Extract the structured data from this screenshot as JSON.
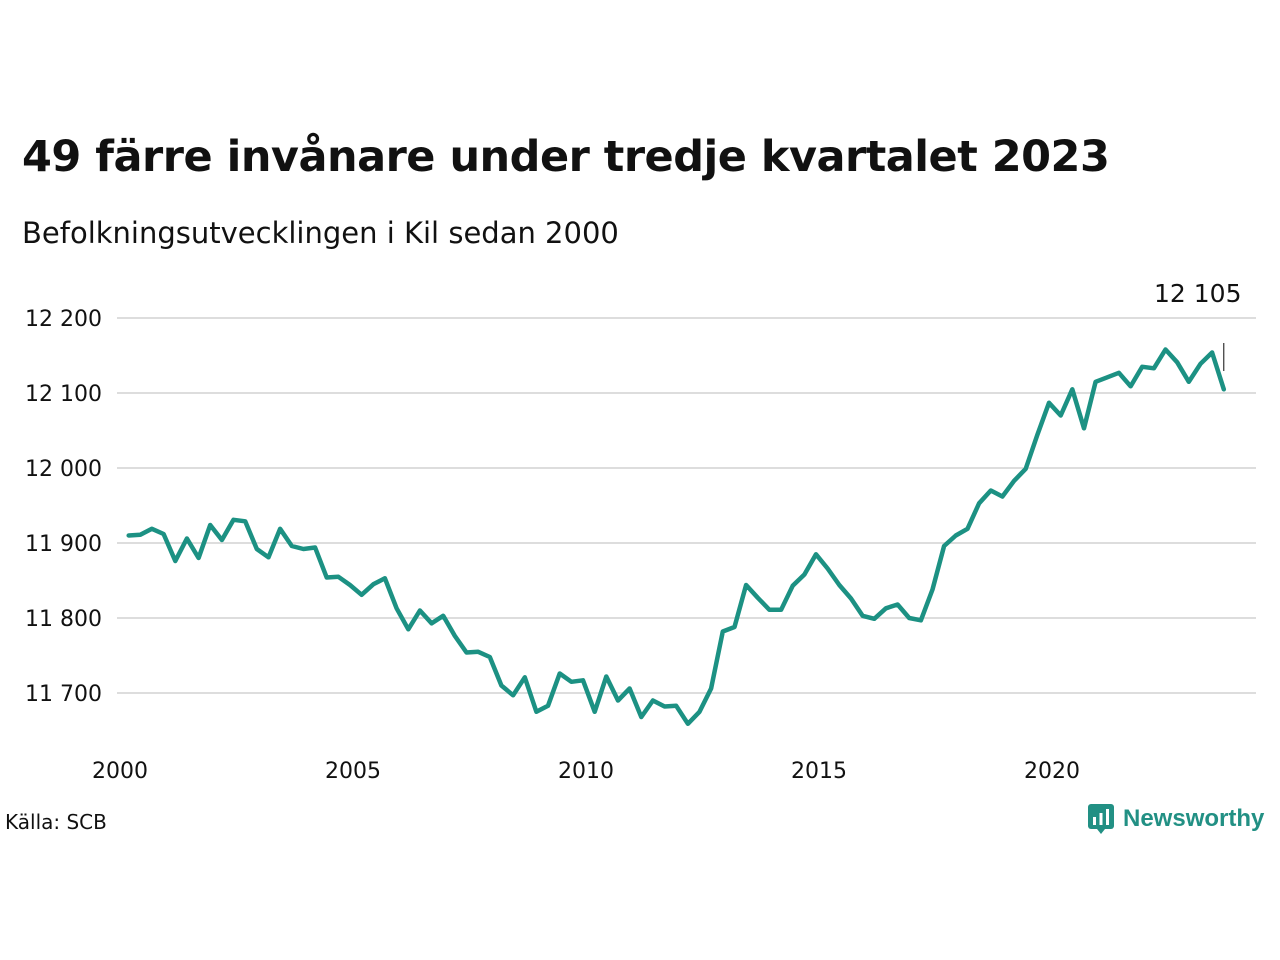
{
  "header": {
    "title": "49 färre invånare under tredje kvartalet 2023",
    "subtitle": "Befolkningsutvecklingen i Kil sedan 2000"
  },
  "footer": {
    "source": "Källa: SCB",
    "brand": "Newsworthy",
    "brand_icon": "newsworthy-logo-icon"
  },
  "colors": {
    "line": "#1c9183",
    "grid": "#dddddd",
    "brand": "#229084"
  },
  "chart_data": {
    "type": "line",
    "x_start": 2000,
    "x_step": 0.25,
    "ylim": [
      11650,
      12220
    ],
    "xlim": [
      2000,
      2024
    ],
    "y_ticks": [
      11700,
      11800,
      11900,
      12000,
      12100,
      12200
    ],
    "y_tick_labels": [
      "11 700",
      "11 800",
      "11 900",
      "12 000",
      "12 100",
      "12 200"
    ],
    "x_ticks": [
      2000,
      2005,
      2010,
      2015,
      2020
    ],
    "x_tick_labels": [
      "2000",
      "2005",
      "2010",
      "2015",
      "2020"
    ],
    "grid": true,
    "end_label": "12 105",
    "series": [
      {
        "values": [
          11910,
          11911,
          11919,
          11912,
          11876,
          11906,
          11880,
          11924,
          11904,
          11931,
          11929,
          11892,
          11881,
          11919,
          11896,
          11892,
          11894,
          11854,
          11855,
          11844,
          11831,
          11845,
          11853,
          11813,
          11785,
          11810,
          11793,
          11803,
          11776,
          11754,
          11755,
          11748,
          11710,
          11697,
          11721,
          11675,
          11683,
          11726,
          11715,
          11717,
          11675,
          11722,
          11690,
          11706,
          11668,
          11690,
          11682,
          11683,
          11659,
          11675,
          11706,
          11782,
          11788,
          11844,
          11827,
          11811,
          11811,
          11843,
          11858,
          11885,
          11866,
          11844,
          11826,
          11803,
          11799,
          11813,
          11818,
          11800,
          11797,
          11838,
          11896,
          11910,
          11919,
          11953,
          11970,
          11962,
          11983,
          11999,
          12044,
          12087,
          12070,
          12105,
          12053,
          12115,
          12121,
          12127,
          12109,
          12135,
          12133,
          12158,
          12141,
          12115,
          12139,
          12154,
          12105
        ]
      }
    ]
  }
}
